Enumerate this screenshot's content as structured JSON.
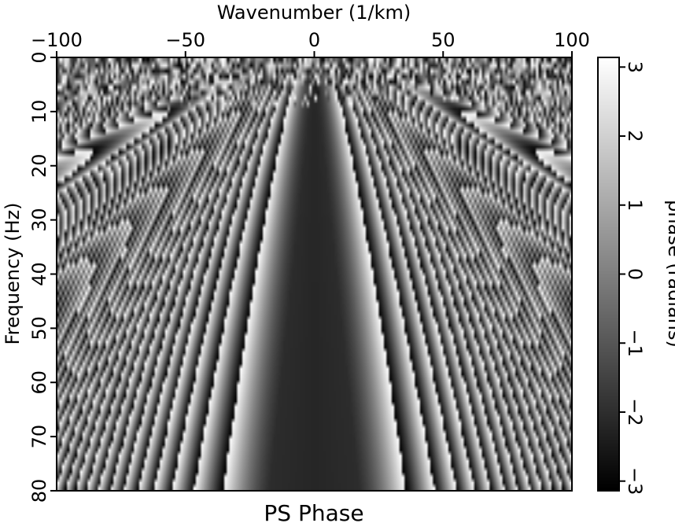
{
  "chart_data": {
    "type": "heatmap",
    "title": "PS Phase",
    "xlabel": "Wavenumber (1/km)",
    "ylabel": "Frequency (Hz)",
    "colorbar_label": "phase (radians)",
    "xlim": [
      -100,
      100
    ],
    "ylim": [
      0,
      80
    ],
    "y_axis_direction": "downward",
    "x_axis_position": "top",
    "x_ticks": [
      -100,
      -50,
      0,
      50,
      100
    ],
    "y_ticks": [
      0,
      10,
      20,
      30,
      40,
      50,
      60,
      70,
      80
    ],
    "colorbar_range": [
      -3.14,
      3.14
    ],
    "colorbar_ticks": [
      -3,
      -2,
      -1,
      0,
      1,
      2,
      3
    ],
    "colormap": "grayscale (black = -pi, white = +pi)",
    "x_samples": 200,
    "y_samples": 80,
    "pattern": "wrapped phase with fan-shaped bands spreading from k=0, f=0; phase approx -2.2 rad in the central cone |k| < 0.22*f; noisy at low frequencies (f < 10 Hz)"
  },
  "colors": {
    "axis": "#000000",
    "background": "#ffffff"
  }
}
